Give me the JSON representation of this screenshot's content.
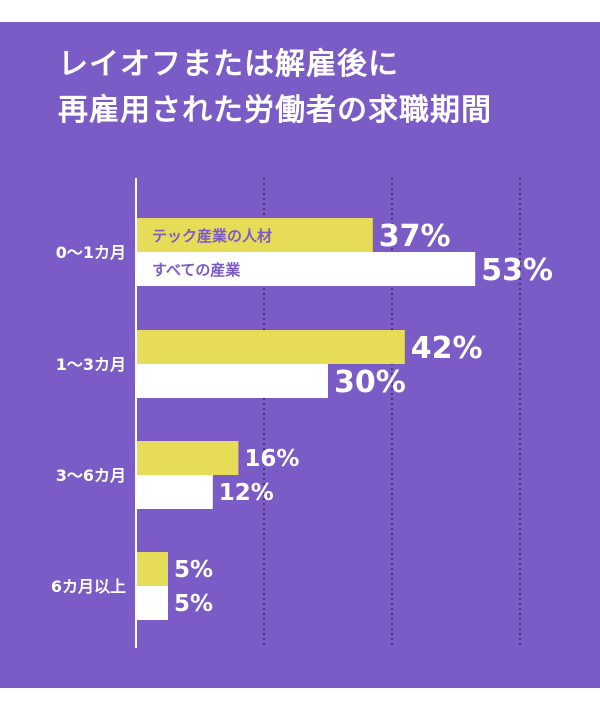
{
  "colors": {
    "background": "#7b5bc6",
    "tech": "#e6dc58",
    "all": "#ffffff",
    "text": "#ffffff",
    "grid": "#2e2a55"
  },
  "chart_data": {
    "type": "bar",
    "orientation": "horizontal",
    "title_lines": [
      "レイオフまたは解雇後に",
      "再雇用された労働者の求職期間"
    ],
    "categories": [
      "0～1カ月",
      "1～3カ月",
      "3～6カ月",
      "6カ月以上"
    ],
    "series": [
      {
        "name": "テック産業の人材",
        "values": [
          37,
          42,
          16,
          5
        ],
        "labels": [
          "37%",
          "42%",
          "16%",
          "5%"
        ],
        "color": "#e6dc58"
      },
      {
        "name": "すべての産業",
        "values": [
          53,
          30,
          12,
          5
        ],
        "labels": [
          "53%",
          "30%",
          "12%",
          "5%"
        ],
        "color": "#ffffff"
      }
    ],
    "xlim": [
      0,
      60
    ],
    "grid": "vertical dotted lines",
    "legend": "inside first category bars"
  }
}
